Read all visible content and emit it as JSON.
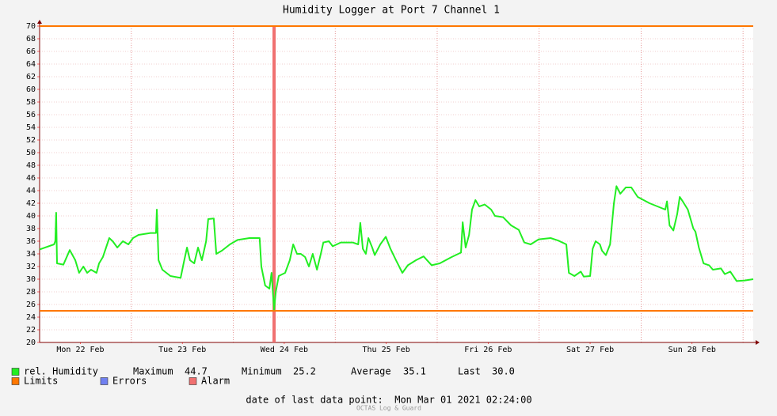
{
  "chart_data": {
    "type": "line",
    "title": "Humidity Logger at Port 7 Channel 1",
    "xlim": [
      2.4,
      170.4
    ],
    "xticks": [
      {
        "value": 12,
        "label": "Mon 22 Feb"
      },
      {
        "value": 36,
        "label": "Tue 23 Feb"
      },
      {
        "value": 60,
        "label": "Wed 24 Feb"
      },
      {
        "value": 84,
        "label": "Thu 25 Feb"
      },
      {
        "value": 108,
        "label": "Fri 26 Feb"
      },
      {
        "value": 132,
        "label": "Sat 27 Feb"
      },
      {
        "value": 156,
        "label": "Sun 28 Feb"
      }
    ],
    "ylim": [
      20,
      70
    ],
    "yticks": [
      20,
      22,
      24,
      26,
      28,
      30,
      32,
      34,
      36,
      38,
      40,
      42,
      44,
      46,
      48,
      50,
      52,
      54,
      56,
      58,
      60,
      62,
      64,
      66,
      68,
      70
    ],
    "grid": true,
    "x": [
      2.4,
      5.8,
      6.1,
      6.3,
      6.5,
      8.0,
      9.5,
      10.8,
      11.7,
      12.7,
      13.6,
      14.5,
      15.8,
      16.4,
      17.3,
      18.8,
      19.6,
      20.7,
      22.0,
      23.3,
      24.4,
      25.7,
      28.5,
      29.8,
      30.0,
      30.4,
      31.3,
      33.2,
      35.6,
      36.3,
      37.1,
      37.8,
      38.8,
      39.7,
      40.6,
      41.6,
      42.1,
      43.4,
      44.0,
      45.3,
      47.2,
      49.0,
      51.8,
      54.2,
      54.6,
      55.5,
      56.5,
      57.0,
      57.6,
      58.0,
      58.7,
      60.2,
      61.3,
      62.1,
      63.0,
      63.9,
      64.9,
      65.8,
      66.7,
      67.7,
      68.6,
      69.2,
      70.5,
      71.4,
      73.3,
      76.1,
      77.4,
      77.9,
      78.5,
      79.2,
      79.8,
      80.7,
      81.3,
      82.6,
      83.9,
      85.0,
      86.3,
      87.8,
      89.1,
      91.0,
      92.8,
      94.7,
      96.6,
      99.4,
      101.6,
      102.0,
      102.7,
      103.5,
      104.2,
      105.0,
      105.9,
      107.2,
      108.7,
      109.6,
      111.5,
      113.4,
      115.2,
      116.5,
      118.0,
      119.9,
      122.7,
      124.5,
      126.4,
      127.0,
      128.3,
      129.8,
      130.5,
      132.0,
      132.6,
      133.3,
      134.3,
      134.8,
      135.7,
      136.7,
      137.6,
      138.2,
      139.1,
      140.4,
      141.7,
      143.2,
      146.0,
      149.7,
      150.1,
      150.7,
      151.6,
      152.5,
      153.1,
      153.8,
      155.0,
      156.3,
      156.8,
      157.6,
      158.7,
      160.0,
      160.9,
      162.8,
      163.7,
      165.0,
      166.5,
      168.4,
      170.4
    ],
    "series": [
      {
        "name": "rel. Humidity",
        "color": "#22ee22",
        "values": [
          34.7,
          35.5,
          36,
          40.5,
          32.5,
          32.3,
          34.6,
          33,
          31,
          32,
          31,
          31.5,
          31,
          32.5,
          33.5,
          36.5,
          36,
          35,
          36,
          35.5,
          36.5,
          37,
          37.3,
          37.3,
          41,
          33,
          31.5,
          30.5,
          30.2,
          32.5,
          35,
          33,
          32.5,
          35,
          33,
          36,
          39.5,
          39.6,
          34,
          34.5,
          35.5,
          36.2,
          36.5,
          36.5,
          32,
          29,
          28.5,
          31,
          25.2,
          28,
          30.5,
          31,
          33,
          35.5,
          34,
          34,
          33.5,
          32,
          34,
          31.5,
          34,
          35.8,
          36,
          35.2,
          35.8,
          35.8,
          35.5,
          38.9,
          34.8,
          34,
          36.5,
          35,
          33.8,
          35.5,
          36.7,
          34.8,
          33,
          31,
          32.2,
          33,
          33.6,
          32.2,
          32.5,
          33.5,
          34.2,
          39,
          35,
          37,
          41,
          42.5,
          41.5,
          41.8,
          41,
          40,
          39.8,
          38.5,
          37.8,
          35.8,
          35.5,
          36.3,
          36.5,
          36.1,
          35.5,
          31,
          30.5,
          31.2,
          30.4,
          30.5,
          34.8,
          36,
          35.5,
          34.5,
          33.8,
          35.5,
          42,
          44.7,
          43.5,
          44.5,
          44.5,
          43,
          42,
          41,
          42.3,
          38.5,
          37.7,
          40.3,
          43,
          42.3,
          41,
          38,
          37.5,
          35,
          32.5,
          32.2,
          31.5,
          31.7,
          30.8,
          31.2,
          29.7,
          29.8,
          30
        ]
      }
    ],
    "stats": [
      {
        "name": "Maximum",
        "value": 44.7
      },
      {
        "name": "Minimum",
        "value": 25.2
      },
      {
        "name": "Average",
        "value": 35.1
      },
      {
        "name": "Last",
        "value": 30,
        "label": "30.0"
      }
    ],
    "limits": {
      "name": "Limits",
      "color": "#ff7700",
      "values": [
        70,
        25
      ]
    },
    "errors": {
      "name": "Errors",
      "color": "#7080f0"
    },
    "alarms": {
      "name": "Alarm",
      "color": "#f07070",
      "x": [
        57.6
      ]
    },
    "footer": "date of last data point:  Mon Mar 01 2021 02:24:00",
    "watermark": "OCTAS Log & Guard"
  }
}
